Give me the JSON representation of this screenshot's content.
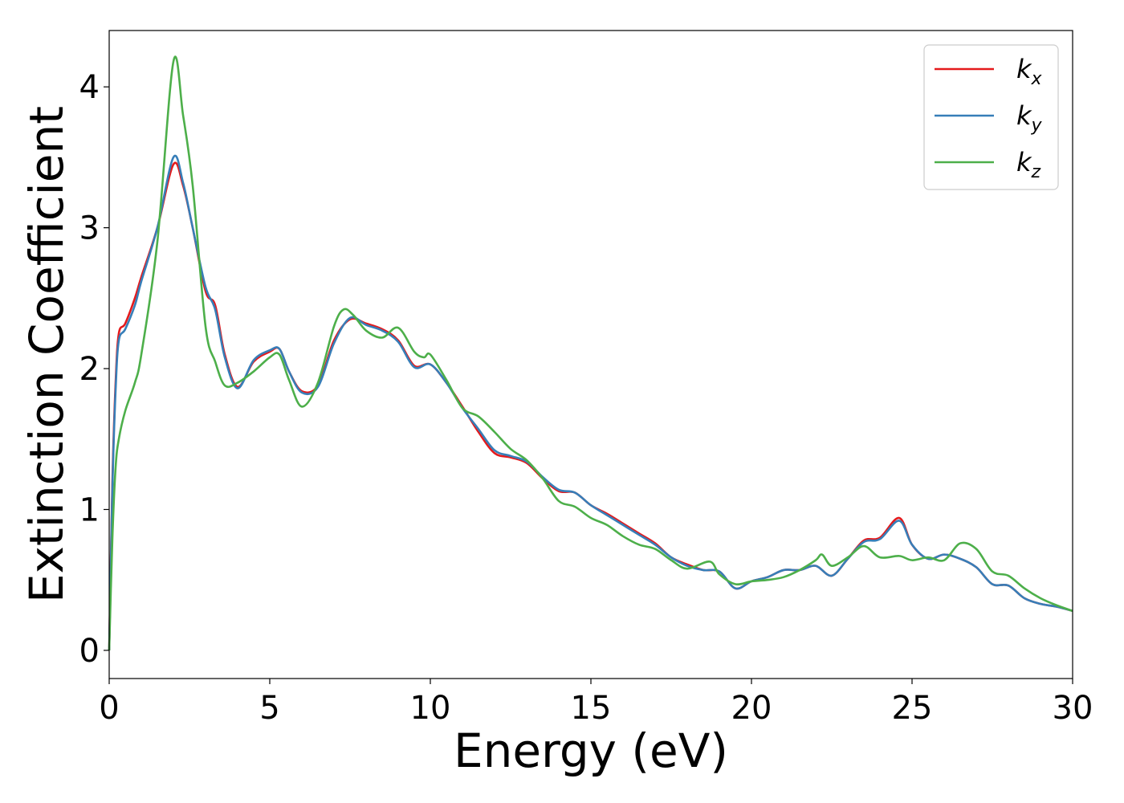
{
  "chart_data": {
    "type": "line",
    "xlabel": "Energy (eV)",
    "ylabel": "Extinction Coefficient",
    "xlim": [
      0,
      30
    ],
    "ylim": [
      -0.2,
      4.4
    ],
    "x_ticks": [
      0,
      5,
      10,
      15,
      20,
      25,
      30
    ],
    "y_ticks": [
      0,
      1,
      2,
      3,
      4
    ],
    "grid": false,
    "legend_position": "top-right",
    "series": [
      {
        "name": "k_x",
        "legend_base": "k",
        "legend_sub": "x",
        "color": "#e41a1c",
        "x": [
          0,
          0.1,
          0.2,
          0.3,
          0.5,
          0.8,
          1.0,
          1.5,
          2.0,
          2.3,
          2.6,
          3.0,
          3.3,
          3.6,
          4.0,
          4.5,
          5.0,
          5.3,
          5.6,
          6.0,
          6.5,
          7.0,
          7.5,
          8.0,
          8.5,
          9.0,
          9.5,
          10.0,
          10.5,
          11.0,
          11.5,
          12.0,
          12.5,
          13.0,
          13.5,
          14.0,
          14.5,
          15.0,
          15.5,
          16.0,
          16.5,
          17.0,
          17.5,
          18.0,
          18.5,
          19.0,
          19.5,
          20.0,
          20.5,
          21.0,
          21.5,
          22.0,
          22.5,
          23.0,
          23.5,
          24.0,
          24.6,
          25.0,
          25.5,
          26.0,
          26.5,
          27.0,
          27.5,
          28.0,
          28.5,
          29.0,
          29.5,
          30.0
        ],
        "y": [
          0,
          1.2,
          1.9,
          2.25,
          2.32,
          2.5,
          2.65,
          3.0,
          3.45,
          3.3,
          3.0,
          2.55,
          2.45,
          2.1,
          1.87,
          2.05,
          2.12,
          2.14,
          1.98,
          1.84,
          1.88,
          2.2,
          2.35,
          2.32,
          2.28,
          2.2,
          2.02,
          2.03,
          1.9,
          1.73,
          1.55,
          1.4,
          1.37,
          1.33,
          1.22,
          1.13,
          1.12,
          1.03,
          0.97,
          0.9,
          0.83,
          0.76,
          0.66,
          0.61,
          0.57,
          0.56,
          0.44,
          0.49,
          0.52,
          0.57,
          0.57,
          0.6,
          0.53,
          0.65,
          0.78,
          0.8,
          0.94,
          0.75,
          0.65,
          0.68,
          0.65,
          0.59,
          0.47,
          0.46,
          0.37,
          0.33,
          0.31,
          0.28
        ]
      },
      {
        "name": "k_y",
        "legend_base": "k",
        "legend_sub": "y",
        "color": "#377eb8",
        "x": [
          0,
          0.1,
          0.2,
          0.3,
          0.5,
          0.8,
          1.0,
          1.5,
          2.0,
          2.3,
          2.6,
          3.0,
          3.3,
          3.6,
          4.0,
          4.5,
          5.0,
          5.3,
          5.6,
          6.0,
          6.5,
          7.0,
          7.5,
          8.0,
          8.5,
          9.0,
          9.5,
          10.0,
          10.5,
          11.0,
          11.5,
          12.0,
          12.5,
          13.0,
          13.5,
          14.0,
          14.5,
          15.0,
          15.5,
          16.0,
          16.5,
          17.0,
          17.5,
          18.0,
          18.5,
          19.0,
          19.5,
          20.0,
          20.5,
          21.0,
          21.5,
          22.0,
          22.5,
          23.0,
          23.5,
          24.0,
          24.6,
          25.0,
          25.5,
          26.0,
          26.5,
          27.0,
          27.5,
          28.0,
          28.5,
          29.0,
          29.5,
          30.0
        ],
        "y": [
          0,
          1.15,
          1.85,
          2.2,
          2.28,
          2.45,
          2.62,
          3.0,
          3.5,
          3.32,
          3.0,
          2.58,
          2.42,
          2.08,
          1.86,
          2.06,
          2.13,
          2.14,
          1.98,
          1.83,
          1.87,
          2.18,
          2.36,
          2.31,
          2.27,
          2.19,
          2.01,
          2.03,
          1.9,
          1.72,
          1.57,
          1.42,
          1.38,
          1.34,
          1.23,
          1.14,
          1.12,
          1.03,
          0.96,
          0.89,
          0.82,
          0.75,
          0.66,
          0.6,
          0.57,
          0.56,
          0.44,
          0.49,
          0.52,
          0.57,
          0.57,
          0.6,
          0.53,
          0.65,
          0.77,
          0.79,
          0.92,
          0.75,
          0.65,
          0.68,
          0.65,
          0.59,
          0.47,
          0.46,
          0.37,
          0.33,
          0.31,
          0.28
        ]
      },
      {
        "name": "k_z",
        "legend_base": "k",
        "legend_sub": "z",
        "color": "#4daf4a",
        "x": [
          0,
          0.1,
          0.2,
          0.3,
          0.5,
          0.8,
          1.0,
          1.5,
          2.0,
          2.3,
          2.6,
          3.0,
          3.3,
          3.6,
          4.0,
          4.5,
          5.0,
          5.3,
          5.6,
          6.0,
          6.5,
          7.0,
          7.3,
          7.6,
          8.0,
          8.5,
          9.0,
          9.5,
          9.8,
          10.0,
          10.5,
          11.0,
          11.5,
          12.0,
          12.5,
          13.0,
          13.5,
          14.0,
          14.5,
          15.0,
          15.5,
          16.0,
          16.5,
          17.0,
          17.5,
          18.0,
          18.7,
          19.0,
          19.5,
          20.0,
          20.5,
          21.0,
          21.5,
          22.0,
          22.2,
          22.5,
          23.0,
          23.5,
          24.0,
          24.6,
          25.0,
          25.5,
          26.0,
          26.5,
          27.0,
          27.5,
          28.0,
          28.5,
          29.0,
          29.5,
          30.0
        ],
        "y": [
          0,
          0.8,
          1.3,
          1.5,
          1.7,
          1.9,
          2.1,
          2.9,
          4.18,
          3.8,
          3.3,
          2.3,
          2.05,
          1.88,
          1.9,
          1.98,
          2.08,
          2.1,
          1.92,
          1.73,
          1.9,
          2.3,
          2.42,
          2.38,
          2.27,
          2.22,
          2.29,
          2.12,
          2.08,
          2.1,
          1.92,
          1.72,
          1.66,
          1.55,
          1.43,
          1.35,
          1.22,
          1.06,
          1.02,
          0.94,
          0.89,
          0.81,
          0.75,
          0.72,
          0.64,
          0.58,
          0.63,
          0.54,
          0.47,
          0.49,
          0.5,
          0.52,
          0.57,
          0.64,
          0.68,
          0.6,
          0.66,
          0.74,
          0.66,
          0.67,
          0.64,
          0.66,
          0.64,
          0.76,
          0.72,
          0.56,
          0.53,
          0.44,
          0.37,
          0.32,
          0.28
        ]
      }
    ]
  }
}
